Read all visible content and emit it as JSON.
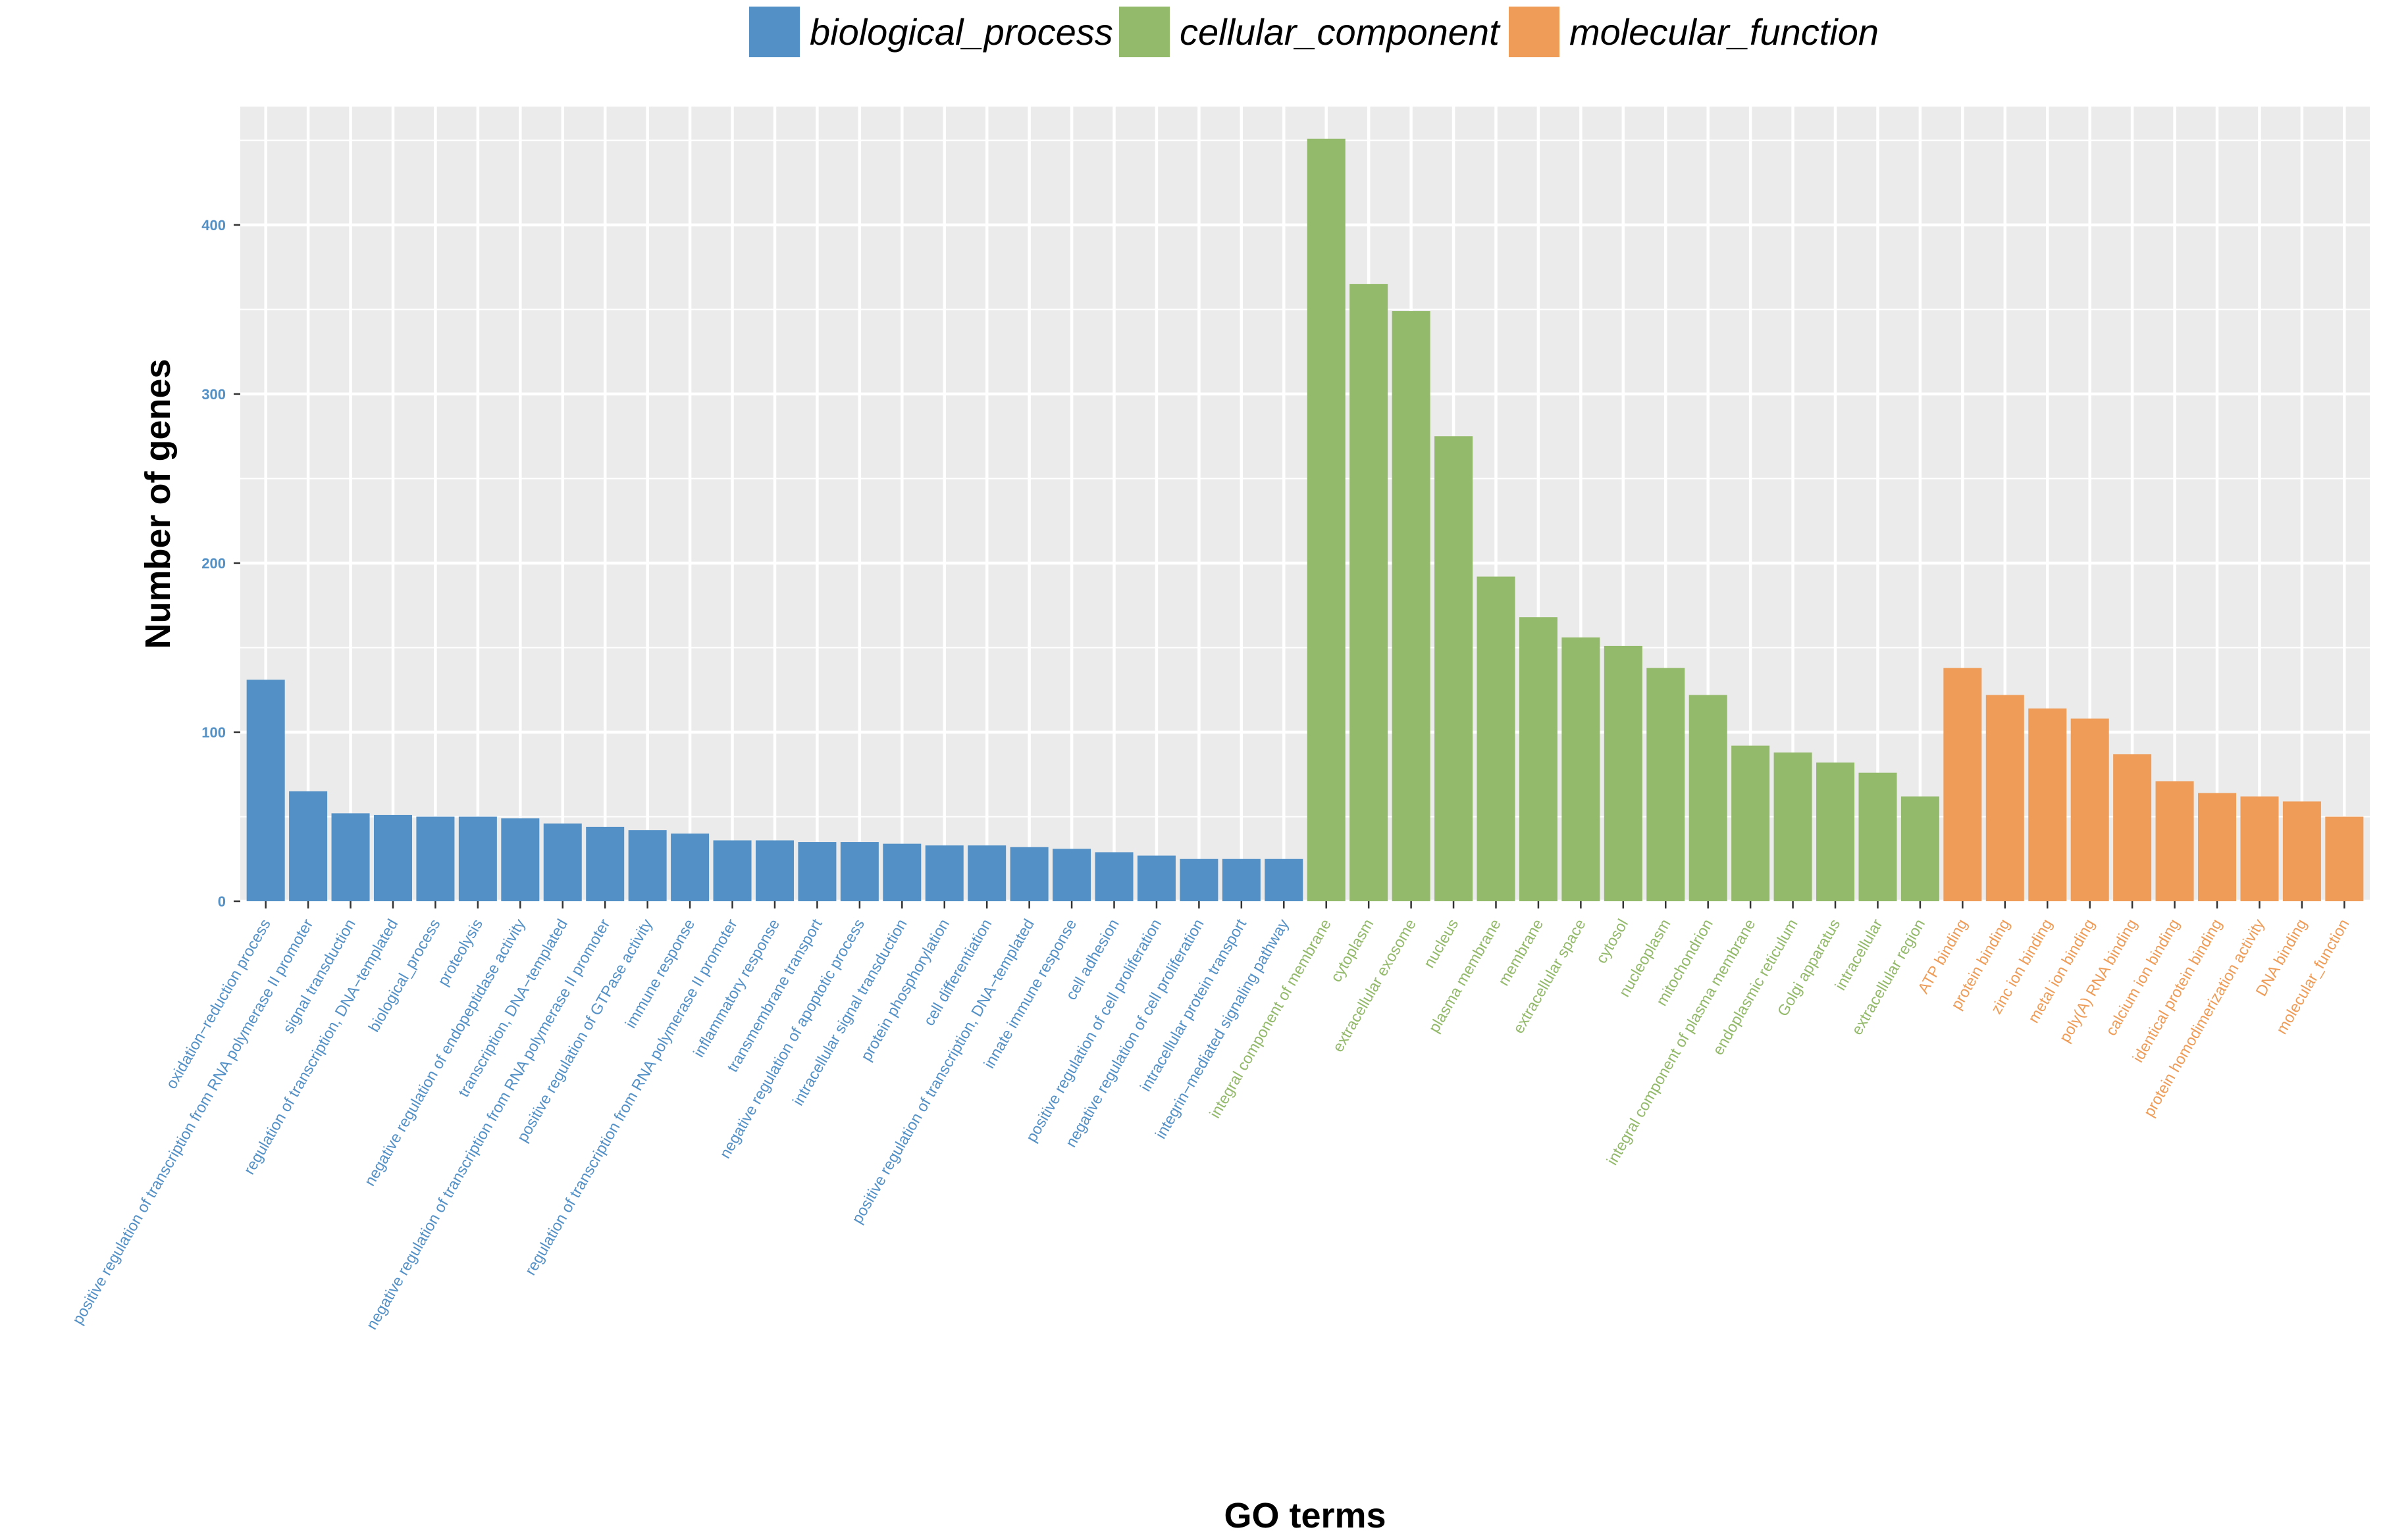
{
  "chart_data": {
    "type": "bar",
    "title": "",
    "xlabel": "GO terms",
    "ylabel": "Number of genes",
    "ylim": [
      0,
      470
    ],
    "yticks": [
      0,
      100,
      200,
      300,
      400
    ],
    "ytick_labels": [
      "0",
      "100",
      "200",
      "300",
      "400"
    ],
    "grid": true,
    "legend_position": "top",
    "series": [
      {
        "name": "biological_process",
        "color": "#5390c6",
        "categories": [
          "oxidation−reduction process",
          "positive regulation of transcription from RNA polymerase II promoter",
          "signal transduction",
          "regulation of transcription, DNA−templated",
          "biological_process",
          "proteolysis",
          "negative regulation of endopeptidase activity",
          "transcription, DNA−templated",
          "negative regulation of transcription from RNA polymerase II promoter",
          "positive regulation of GTPase activity",
          "immune response",
          "regulation of transcription from RNA polymerase II promoter",
          "inflammatory response",
          "transmembrane transport",
          "negative regulation of apoptotic process",
          "intracellular signal transduction",
          "protein phosphorylation",
          "cell differentiation",
          "positive regulation of transcription, DNA−templated",
          "innate immune response",
          "cell adhesion",
          "positive regulation of cell proliferation",
          "negative regulation of cell proliferation",
          "intracellular protein transport",
          "integrin−mediated signaling pathway"
        ],
        "values": [
          131,
          65,
          52,
          51,
          50,
          50,
          49,
          46,
          44,
          42,
          40,
          36,
          36,
          35,
          35,
          34,
          33,
          33,
          32,
          31,
          29,
          27,
          25,
          25,
          25
        ]
      },
      {
        "name": "cellular_component",
        "color": "#93b96a",
        "categories": [
          "integral component of membrane",
          "cytoplasm",
          "extracellular exosome",
          "nucleus",
          "plasma membrane",
          "membrane",
          "extracellular space",
          "cytosol",
          "nucleoplasm",
          "mitochondrion",
          "integral component of plasma membrane",
          "endoplasmic reticulum",
          "Golgi apparatus",
          "intracellular",
          "extracellular region"
        ],
        "values": [
          451,
          365,
          349,
          275,
          192,
          168,
          156,
          151,
          138,
          122,
          92,
          88,
          82,
          76,
          62
        ]
      },
      {
        "name": "molecular_function",
        "color": "#ee9c58",
        "categories": [
          "ATP binding",
          "protein binding",
          "zinc ion binding",
          "metal ion binding",
          "poly(A) RNA binding",
          "calcium ion binding",
          "identical protein binding",
          "protein homodimerization activity",
          "DNA binding",
          "molecular_function"
        ],
        "values": [
          138,
          122,
          114,
          108,
          87,
          71,
          64,
          62,
          59,
          50
        ]
      }
    ]
  }
}
